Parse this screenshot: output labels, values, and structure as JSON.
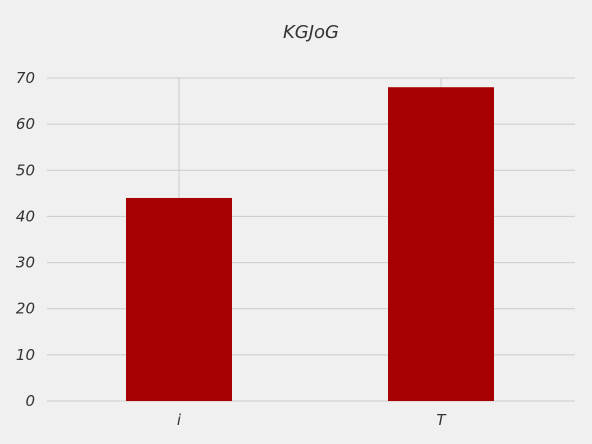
{
  "chart_data": {
    "type": "bar",
    "title": "KGJoG",
    "xlabel": "",
    "ylabel": "",
    "categories": [
      "i",
      "T"
    ],
    "values": [
      44,
      68
    ],
    "ylim": [
      0,
      70
    ],
    "yticks": [
      0,
      10,
      20,
      30,
      40,
      50,
      60,
      70
    ],
    "grid": true,
    "legend": "none",
    "colors": {
      "bar": "#a60000",
      "background": "#f0f0f0",
      "grid": "#cbcbcb",
      "text": "#333333"
    }
  }
}
